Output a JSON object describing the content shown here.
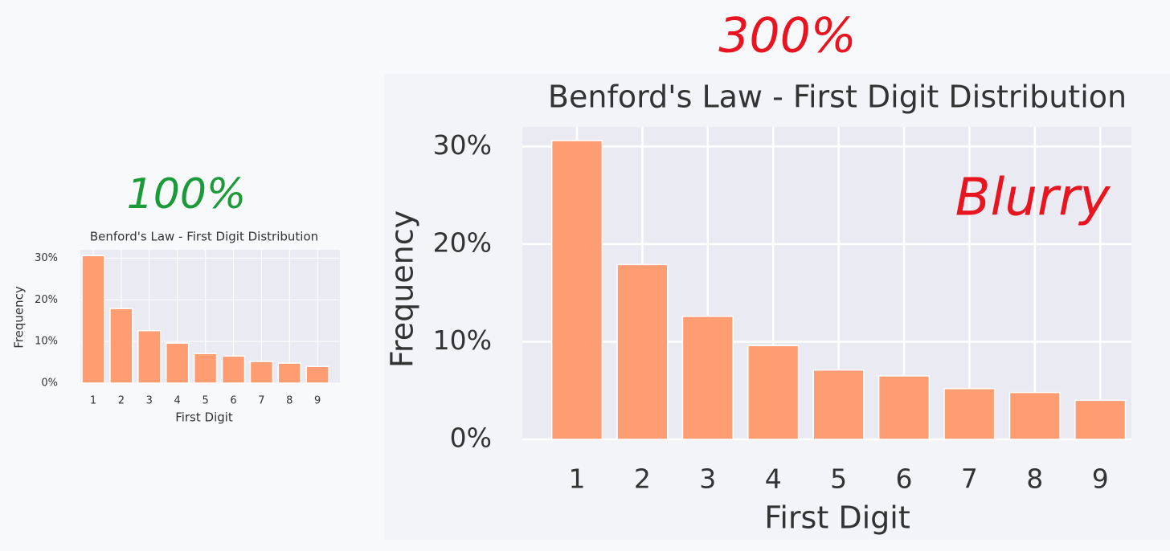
{
  "chart_data": [
    {
      "type": "bar",
      "title": "Benford's Law - First Digit Distribution",
      "xlabel": "First Digit",
      "ylabel": "Frequency",
      "categories": [
        "1",
        "2",
        "3",
        "4",
        "5",
        "6",
        "7",
        "8",
        "9"
      ],
      "values": [
        30.6,
        17.9,
        12.6,
        9.6,
        7.1,
        6.5,
        5.2,
        4.8,
        4.0
      ],
      "color": "#fe9c72",
      "ylim": [
        0,
        32
      ],
      "yticks": [
        {
          "value": 0,
          "label": "0%"
        },
        {
          "value": 10,
          "label": "10%"
        },
        {
          "value": 20,
          "label": "20%"
        },
        {
          "value": 30,
          "label": "30%"
        }
      ],
      "grid": true,
      "annotations": [
        "100%"
      ]
    },
    {
      "type": "bar",
      "title": "Benford's Law - First Digit Distribution",
      "xlabel": "First Digit",
      "ylabel": "Frequency",
      "categories": [
        "1",
        "2",
        "3",
        "4",
        "5",
        "6",
        "7",
        "8",
        "9"
      ],
      "values": [
        30.6,
        17.9,
        12.6,
        9.6,
        7.1,
        6.5,
        5.2,
        4.8,
        4.0
      ],
      "color": "#fe9c72",
      "ylim": [
        0,
        32
      ],
      "yticks": [
        {
          "value": 0,
          "label": "0%"
        },
        {
          "value": 10,
          "label": "10%"
        },
        {
          "value": 20,
          "label": "20%"
        },
        {
          "value": 30,
          "label": "30%"
        }
      ],
      "grid": true,
      "annotations": [
        "300%",
        "Blurry"
      ]
    }
  ]
}
